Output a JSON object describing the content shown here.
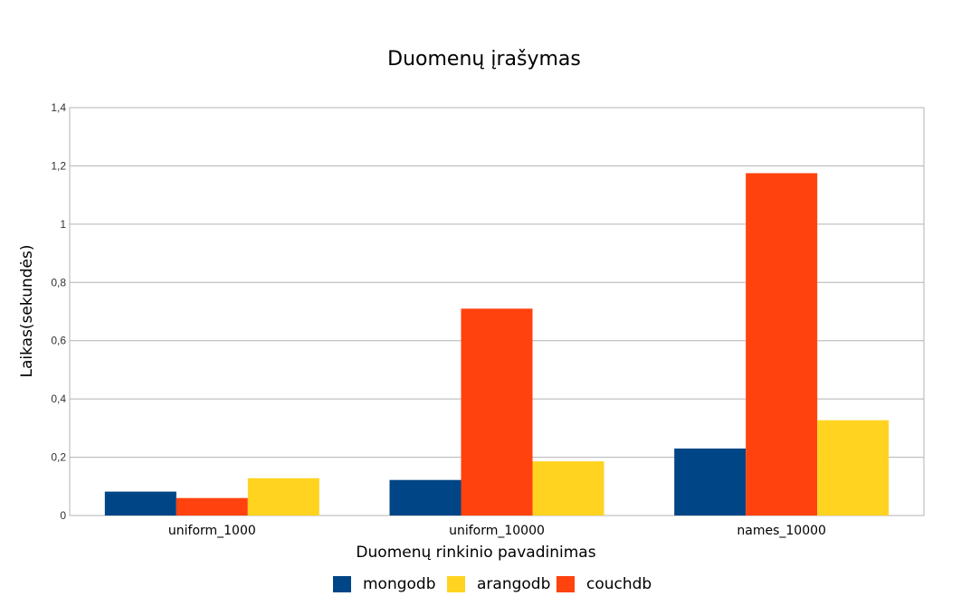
{
  "chart_data": {
    "type": "bar",
    "title": "Duomenų įrašymas",
    "xlabel": "Duomenų rinkinio pavadinimas",
    "ylabel": "Laikas(sekundės)",
    "categories": [
      "uniform_1000",
      "uniform_10000",
      "names_10000"
    ],
    "series": [
      {
        "name": "mongodb",
        "color": "#004586",
        "values": [
          0.082,
          0.122,
          0.23
        ]
      },
      {
        "name": "couchdb",
        "color": "#ff420e",
        "values": [
          0.06,
          0.71,
          1.175
        ]
      },
      {
        "name": "arangodb",
        "color": "#ffd320",
        "values": [
          0.128,
          0.186,
          0.327
        ]
      }
    ],
    "legend_order": [
      "mongodb",
      "arangodb",
      "couchdb"
    ],
    "ylim": [
      0,
      1.4
    ],
    "yticks": [
      "0",
      "0,2",
      "0,4",
      "0,6",
      "0,8",
      "1",
      "1,2",
      "1,4"
    ],
    "grid": true,
    "legend_position": "bottom"
  }
}
